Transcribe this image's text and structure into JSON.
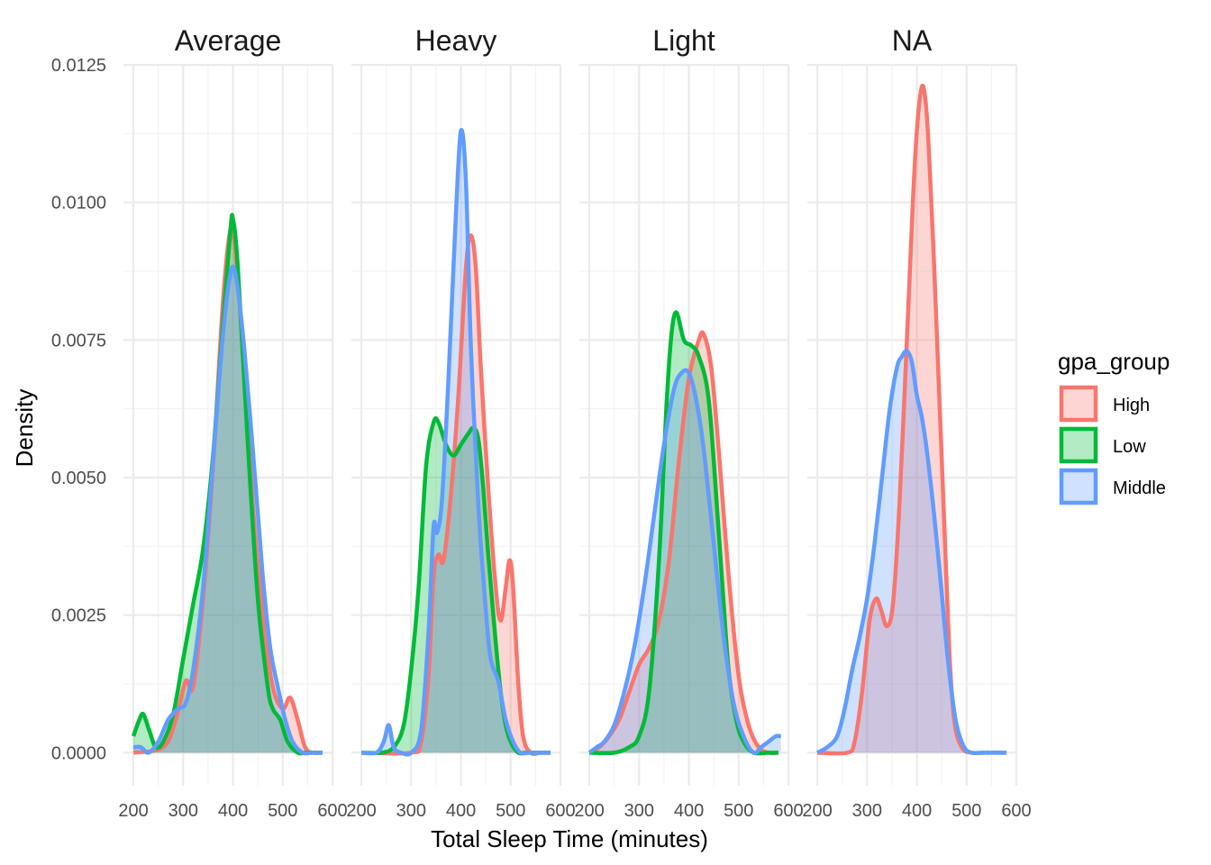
{
  "chart_data": {
    "type": "area",
    "subtype": "density, faceted",
    "xlabel": "Total Sleep Time (minutes)",
    "ylabel": "Density",
    "xlim": [
      180,
      600
    ],
    "ylim": [
      -0.0006,
      0.0125
    ],
    "x_ticks": [
      200,
      300,
      400,
      500,
      600
    ],
    "y_ticks": [
      0.0,
      0.0025,
      0.005,
      0.0075,
      0.01,
      0.0125
    ],
    "y_tick_labels": [
      "0.0000",
      "0.0025",
      "0.0050",
      "0.0075",
      "0.0100",
      "0.0125"
    ],
    "grid": true,
    "legend": {
      "title": "gpa_group",
      "placement": "right",
      "entries": [
        {
          "name": "High",
          "color": "#F8766D"
        },
        {
          "name": "Low",
          "color": "#00BA38"
        },
        {
          "name": "Middle",
          "color": "#619CFF"
        }
      ]
    },
    "facets": [
      {
        "name": "Average",
        "series": [
          {
            "name": "High",
            "x": [
              200,
              260,
              285,
              305,
              320,
              340,
              360,
              380,
              395,
              405,
              420,
              440,
              460,
              480,
              500,
              515,
              530,
              545,
              560,
              580
            ],
            "y": [
              0.0,
              0.0001,
              0.0006,
              0.0013,
              0.0012,
              0.0028,
              0.0052,
              0.0082,
              0.0095,
              0.0091,
              0.0073,
              0.0045,
              0.0025,
              0.0012,
              0.0008,
              0.001,
              0.0006,
              0.0001,
              0.0,
              0.0
            ]
          },
          {
            "name": "Low",
            "x": [
              200,
              212,
              220,
              232,
              245,
              260,
              280,
              300,
              320,
              340,
              360,
              380,
              395,
              400,
              410,
              430,
              450,
              470,
              480,
              495,
              510,
              530,
              545,
              560,
              580
            ],
            "y": [
              0.0003,
              0.0006,
              0.0007,
              0.0004,
              0.0001,
              0.0002,
              0.0007,
              0.0017,
              0.0027,
              0.0037,
              0.0054,
              0.0078,
              0.0095,
              0.0097,
              0.0088,
              0.0056,
              0.0028,
              0.0012,
              0.0008,
              0.0006,
              0.0002,
              0.0,
              0.0,
              0.0,
              0.0
            ]
          },
          {
            "name": "Middle",
            "x": [
              200,
              215,
              230,
              250,
              270,
              290,
              305,
              320,
              340,
              360,
              380,
              395,
              405,
              420,
              440,
              460,
              475,
              490,
              505,
              520,
              540,
              560,
              580
            ],
            "y": [
              0.0001,
              0.0001,
              0.0,
              0.0002,
              0.0006,
              0.0008,
              0.0009,
              0.0015,
              0.003,
              0.0053,
              0.0076,
              0.0087,
              0.0087,
              0.0076,
              0.0055,
              0.0032,
              0.0019,
              0.0012,
              0.0006,
              0.0002,
              0.0,
              0.0,
              0.0
            ]
          }
        ]
      },
      {
        "name": "Heavy",
        "series": [
          {
            "name": "High",
            "x": [
              200,
              300,
              320,
              335,
              345,
              355,
              365,
              380,
              395,
              410,
              420,
              430,
              440,
              455,
              470,
              480,
              490,
              498,
              505,
              515,
              525,
              540,
              560,
              580
            ],
            "y": [
              0.0,
              0.0,
              0.0002,
              0.0014,
              0.0032,
              0.0036,
              0.0035,
              0.0047,
              0.0065,
              0.0088,
              0.0094,
              0.0088,
              0.007,
              0.0048,
              0.003,
              0.0024,
              0.003,
              0.0035,
              0.003,
              0.0013,
              0.0003,
              0.0,
              0.0,
              0.0
            ]
          },
          {
            "name": "Low",
            "x": [
              200,
              240,
              265,
              285,
              300,
              315,
              330,
              345,
              355,
              370,
              385,
              400,
              415,
              425,
              435,
              445,
              455,
              470,
              480,
              490,
              500,
              515,
              530,
              560,
              580
            ],
            "y": [
              0.0,
              0.0,
              0.0001,
              0.0005,
              0.0015,
              0.003,
              0.0052,
              0.006,
              0.006,
              0.0056,
              0.0054,
              0.0056,
              0.0058,
              0.0059,
              0.0057,
              0.0048,
              0.0036,
              0.002,
              0.0011,
              0.0005,
              0.0002,
              0.0,
              0.0,
              0.0,
              0.0
            ]
          },
          {
            "name": "Middle",
            "x": [
              200,
              230,
              245,
              255,
              265,
              280,
              300,
              320,
              335,
              345,
              352,
              362,
              375,
              390,
              400,
              410,
              420,
              435,
              450,
              460,
              475,
              490,
              505,
              520,
              540,
              580
            ],
            "y": [
              0.0,
              0.0,
              0.0002,
              0.0005,
              0.0001,
              0.0,
              0.0,
              0.0004,
              0.0022,
              0.0041,
              0.004,
              0.0046,
              0.0068,
              0.0098,
              0.0113,
              0.0104,
              0.0074,
              0.0045,
              0.0026,
              0.0017,
              0.0013,
              0.0006,
              0.0002,
              0.0,
              0.0,
              0.0
            ]
          }
        ]
      },
      {
        "name": "Light",
        "series": [
          {
            "name": "High",
            "x": [
              200,
              220,
              240,
              260,
              280,
              300,
              320,
              340,
              360,
              380,
              400,
              420,
              430,
              445,
              460,
              480,
              500,
              520,
              540,
              560,
              580
            ],
            "y": [
              0.0,
              0.0001,
              0.0003,
              0.0006,
              0.0011,
              0.0016,
              0.0019,
              0.0024,
              0.0035,
              0.0053,
              0.0068,
              0.0075,
              0.0076,
              0.007,
              0.0055,
              0.0032,
              0.0014,
              0.0005,
              0.0001,
              0.0,
              0.0
            ]
          },
          {
            "name": "Low",
            "x": [
              200,
              250,
              280,
              300,
              320,
              340,
              355,
              365,
              375,
              390,
              405,
              420,
              440,
              460,
              470,
              480,
              495,
              510,
              530,
              560,
              580
            ],
            "y": [
              0.0,
              0.0,
              0.0001,
              0.0003,
              0.0011,
              0.0035,
              0.0063,
              0.0076,
              0.008,
              0.0075,
              0.0074,
              0.0072,
              0.0064,
              0.004,
              0.0027,
              0.0015,
              0.0006,
              0.0002,
              0.0,
              0.0,
              0.0
            ]
          },
          {
            "name": "Middle",
            "x": [
              200,
              215,
              230,
              250,
              270,
              290,
              310,
              330,
              350,
              370,
              385,
              400,
              415,
              430,
              450,
              470,
              490,
              510,
              530,
              545,
              560,
              575,
              585
            ],
            "y": [
              0.0,
              0.0001,
              0.0002,
              0.0005,
              0.0011,
              0.0019,
              0.003,
              0.0043,
              0.0056,
              0.0066,
              0.0069,
              0.0069,
              0.0064,
              0.0055,
              0.0038,
              0.0021,
              0.0009,
              0.0003,
              0.0,
              0.0001,
              0.0002,
              0.0003,
              0.0003
            ]
          }
        ]
      },
      {
        "name": "NA",
        "series": [
          {
            "name": "High",
            "x": [
              200,
              260,
              275,
              290,
              305,
              318,
              328,
              340,
              352,
              365,
              380,
              392,
              400,
              410,
              418,
              425,
              435,
              445,
              455,
              465,
              475,
              490,
              510,
              540,
              580
            ],
            "y": [
              0.0,
              0.0,
              0.0002,
              0.0011,
              0.0024,
              0.0028,
              0.0026,
              0.0023,
              0.0027,
              0.0045,
              0.0075,
              0.01,
              0.0113,
              0.0121,
              0.0118,
              0.0108,
              0.0088,
              0.0065,
              0.0042,
              0.0019,
              0.0006,
              0.0001,
              0.0,
              0.0,
              0.0
            ]
          },
          {
            "name": "Middle",
            "x": [
              200,
              220,
              240,
              255,
              270,
              285,
              300,
              315,
              330,
              345,
              360,
              370,
              380,
              390,
              400,
              410,
              420,
              435,
              450,
              460,
              470,
              480,
              495,
              510,
              530,
              560,
              580
            ],
            "y": [
              0.0,
              0.0001,
              0.0003,
              0.0008,
              0.0015,
              0.0021,
              0.0028,
              0.0038,
              0.005,
              0.0062,
              0.007,
              0.0072,
              0.0073,
              0.0071,
              0.0065,
              0.0061,
              0.0055,
              0.0043,
              0.0029,
              0.0019,
              0.0011,
              0.0005,
              0.0001,
              0.0,
              0.0,
              0.0,
              0.0
            ]
          }
        ]
      }
    ]
  }
}
